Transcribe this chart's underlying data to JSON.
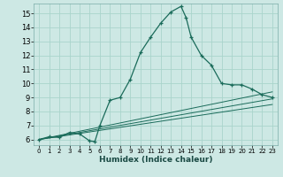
{
  "xlabel": "Humidex (Indice chaleur)",
  "bg_color": "#cde8e4",
  "grid_color": "#aad4cc",
  "line_color": "#1a6b5a",
  "xlim": [
    -0.5,
    23.5
  ],
  "ylim": [
    5.6,
    15.7
  ],
  "xticks": [
    0,
    1,
    2,
    3,
    4,
    5,
    6,
    7,
    8,
    9,
    10,
    11,
    12,
    13,
    14,
    15,
    16,
    17,
    18,
    19,
    20,
    21,
    22,
    23
  ],
  "yticks": [
    6,
    7,
    8,
    9,
    10,
    11,
    12,
    13,
    14,
    15
  ],
  "main_curve_x": [
    0,
    1,
    2,
    3,
    4,
    5,
    5.5,
    6,
    7,
    8,
    9,
    10,
    11,
    12,
    13,
    14,
    14.5,
    15,
    16,
    17,
    18,
    19,
    20,
    21,
    22,
    23
  ],
  "main_curve_y": [
    6.0,
    6.2,
    6.15,
    6.5,
    6.4,
    5.9,
    5.85,
    7.0,
    8.8,
    9.0,
    10.3,
    12.2,
    13.3,
    14.3,
    15.1,
    15.5,
    14.7,
    13.3,
    12.0,
    11.3,
    10.0,
    9.9,
    9.9,
    9.6,
    9.2,
    9.0
  ],
  "line1_x": [
    0,
    23
  ],
  "line1_y": [
    6.0,
    8.5
  ],
  "line2_x": [
    0,
    23
  ],
  "line2_y": [
    6.0,
    8.9
  ],
  "line3_x": [
    0,
    23
  ],
  "line3_y": [
    6.0,
    9.4
  ]
}
